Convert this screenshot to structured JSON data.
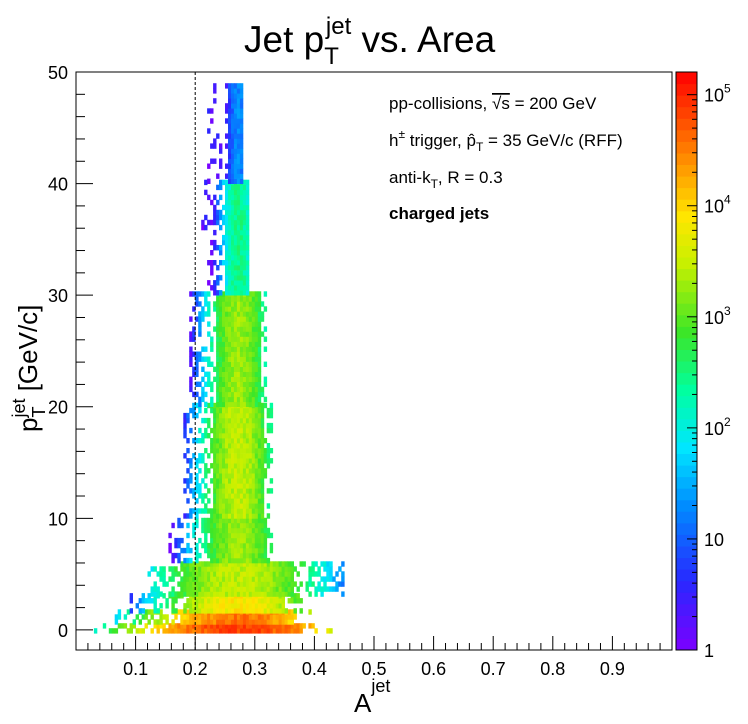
{
  "chart_data": {
    "type": "heatmap",
    "title": {
      "main": "Jet p",
      "sub": "T",
      "sup": "jet",
      "tail": " vs. Area"
    },
    "xlabel": {
      "main": "A",
      "sup": "jet"
    },
    "ylabel": {
      "main": "p",
      "sub": "T",
      "sup": "jet",
      "tail": " [GeV/c]"
    },
    "xlim": [
      0.0,
      1.0
    ],
    "ylim": [
      -1.8,
      50
    ],
    "x_ticks": [
      "0.1",
      "0.2",
      "0.3",
      "0.4",
      "0.5",
      "0.6",
      "0.7",
      "0.8",
      "0.9"
    ],
    "y_ticks": [
      "0",
      "10",
      "20",
      "30",
      "40",
      "50"
    ],
    "colorbar": {
      "scale": "log",
      "range": [
        1,
        160000
      ],
      "tick_labels": [
        {
          "base": "1",
          "exp": ""
        },
        {
          "base": "10",
          "exp": ""
        },
        {
          "base": "10",
          "exp": "2"
        },
        {
          "base": "10",
          "exp": "3"
        },
        {
          "base": "10",
          "exp": "4"
        },
        {
          "base": "10",
          "exp": "5"
        }
      ]
    },
    "cut_line_x": 0.2,
    "annotations": [
      {
        "parts": [
          {
            "t": "pp-collisions, "
          },
          {
            "t": "√s",
            "over": true
          },
          {
            "t": " = 200 GeV"
          }
        ]
      },
      {
        "parts": [
          {
            "t": "h"
          },
          {
            "t": "±",
            "sup": true
          },
          {
            "t": " trigger, "
          },
          {
            "t": "p̂"
          },
          {
            "t": "T",
            "sub": true
          },
          {
            "t": " = 35 GeV/c (RFF)"
          }
        ]
      },
      {
        "parts": [
          {
            "t": "anti-k"
          },
          {
            "t": "T",
            "sub": true
          },
          {
            "t": ", R = 0.3"
          }
        ]
      },
      {
        "parts": [
          {
            "t": "charged jets",
            "bold": true
          }
        ]
      }
    ],
    "distribution": {
      "bands": [
        {
          "pt": [
            -0.3,
            0.5
          ],
          "x": [
            0.03,
            0.43
          ],
          "peak": 80000
        },
        {
          "pt": [
            0.5,
            1.5
          ],
          "x": [
            0.06,
            0.4
          ],
          "peak": 40000
        },
        {
          "pt": [
            1.5,
            3
          ],
          "x": [
            0.09,
            0.38
          ],
          "peak": 8000
        },
        {
          "pt": [
            3,
            6
          ],
          "x": [
            0.12,
            0.45
          ],
          "peak": 3000
        },
        {
          "pt": [
            6,
            10
          ],
          "x": [
            0.15,
            0.33
          ],
          "peak": 2000
        },
        {
          "pt": [
            10,
            20
          ],
          "x": [
            0.18,
            0.33
          ],
          "peak": 3000
        },
        {
          "pt": [
            20,
            30
          ],
          "x": [
            0.19,
            0.32
          ],
          "peak": 2000
        },
        {
          "pt": [
            30,
            40
          ],
          "x": [
            0.21,
            0.29
          ],
          "peak": 300
        },
        {
          "pt": [
            40,
            49
          ],
          "x": [
            0.22,
            0.28
          ],
          "peak": 20
        }
      ],
      "ridge_x": 0.27
    }
  }
}
